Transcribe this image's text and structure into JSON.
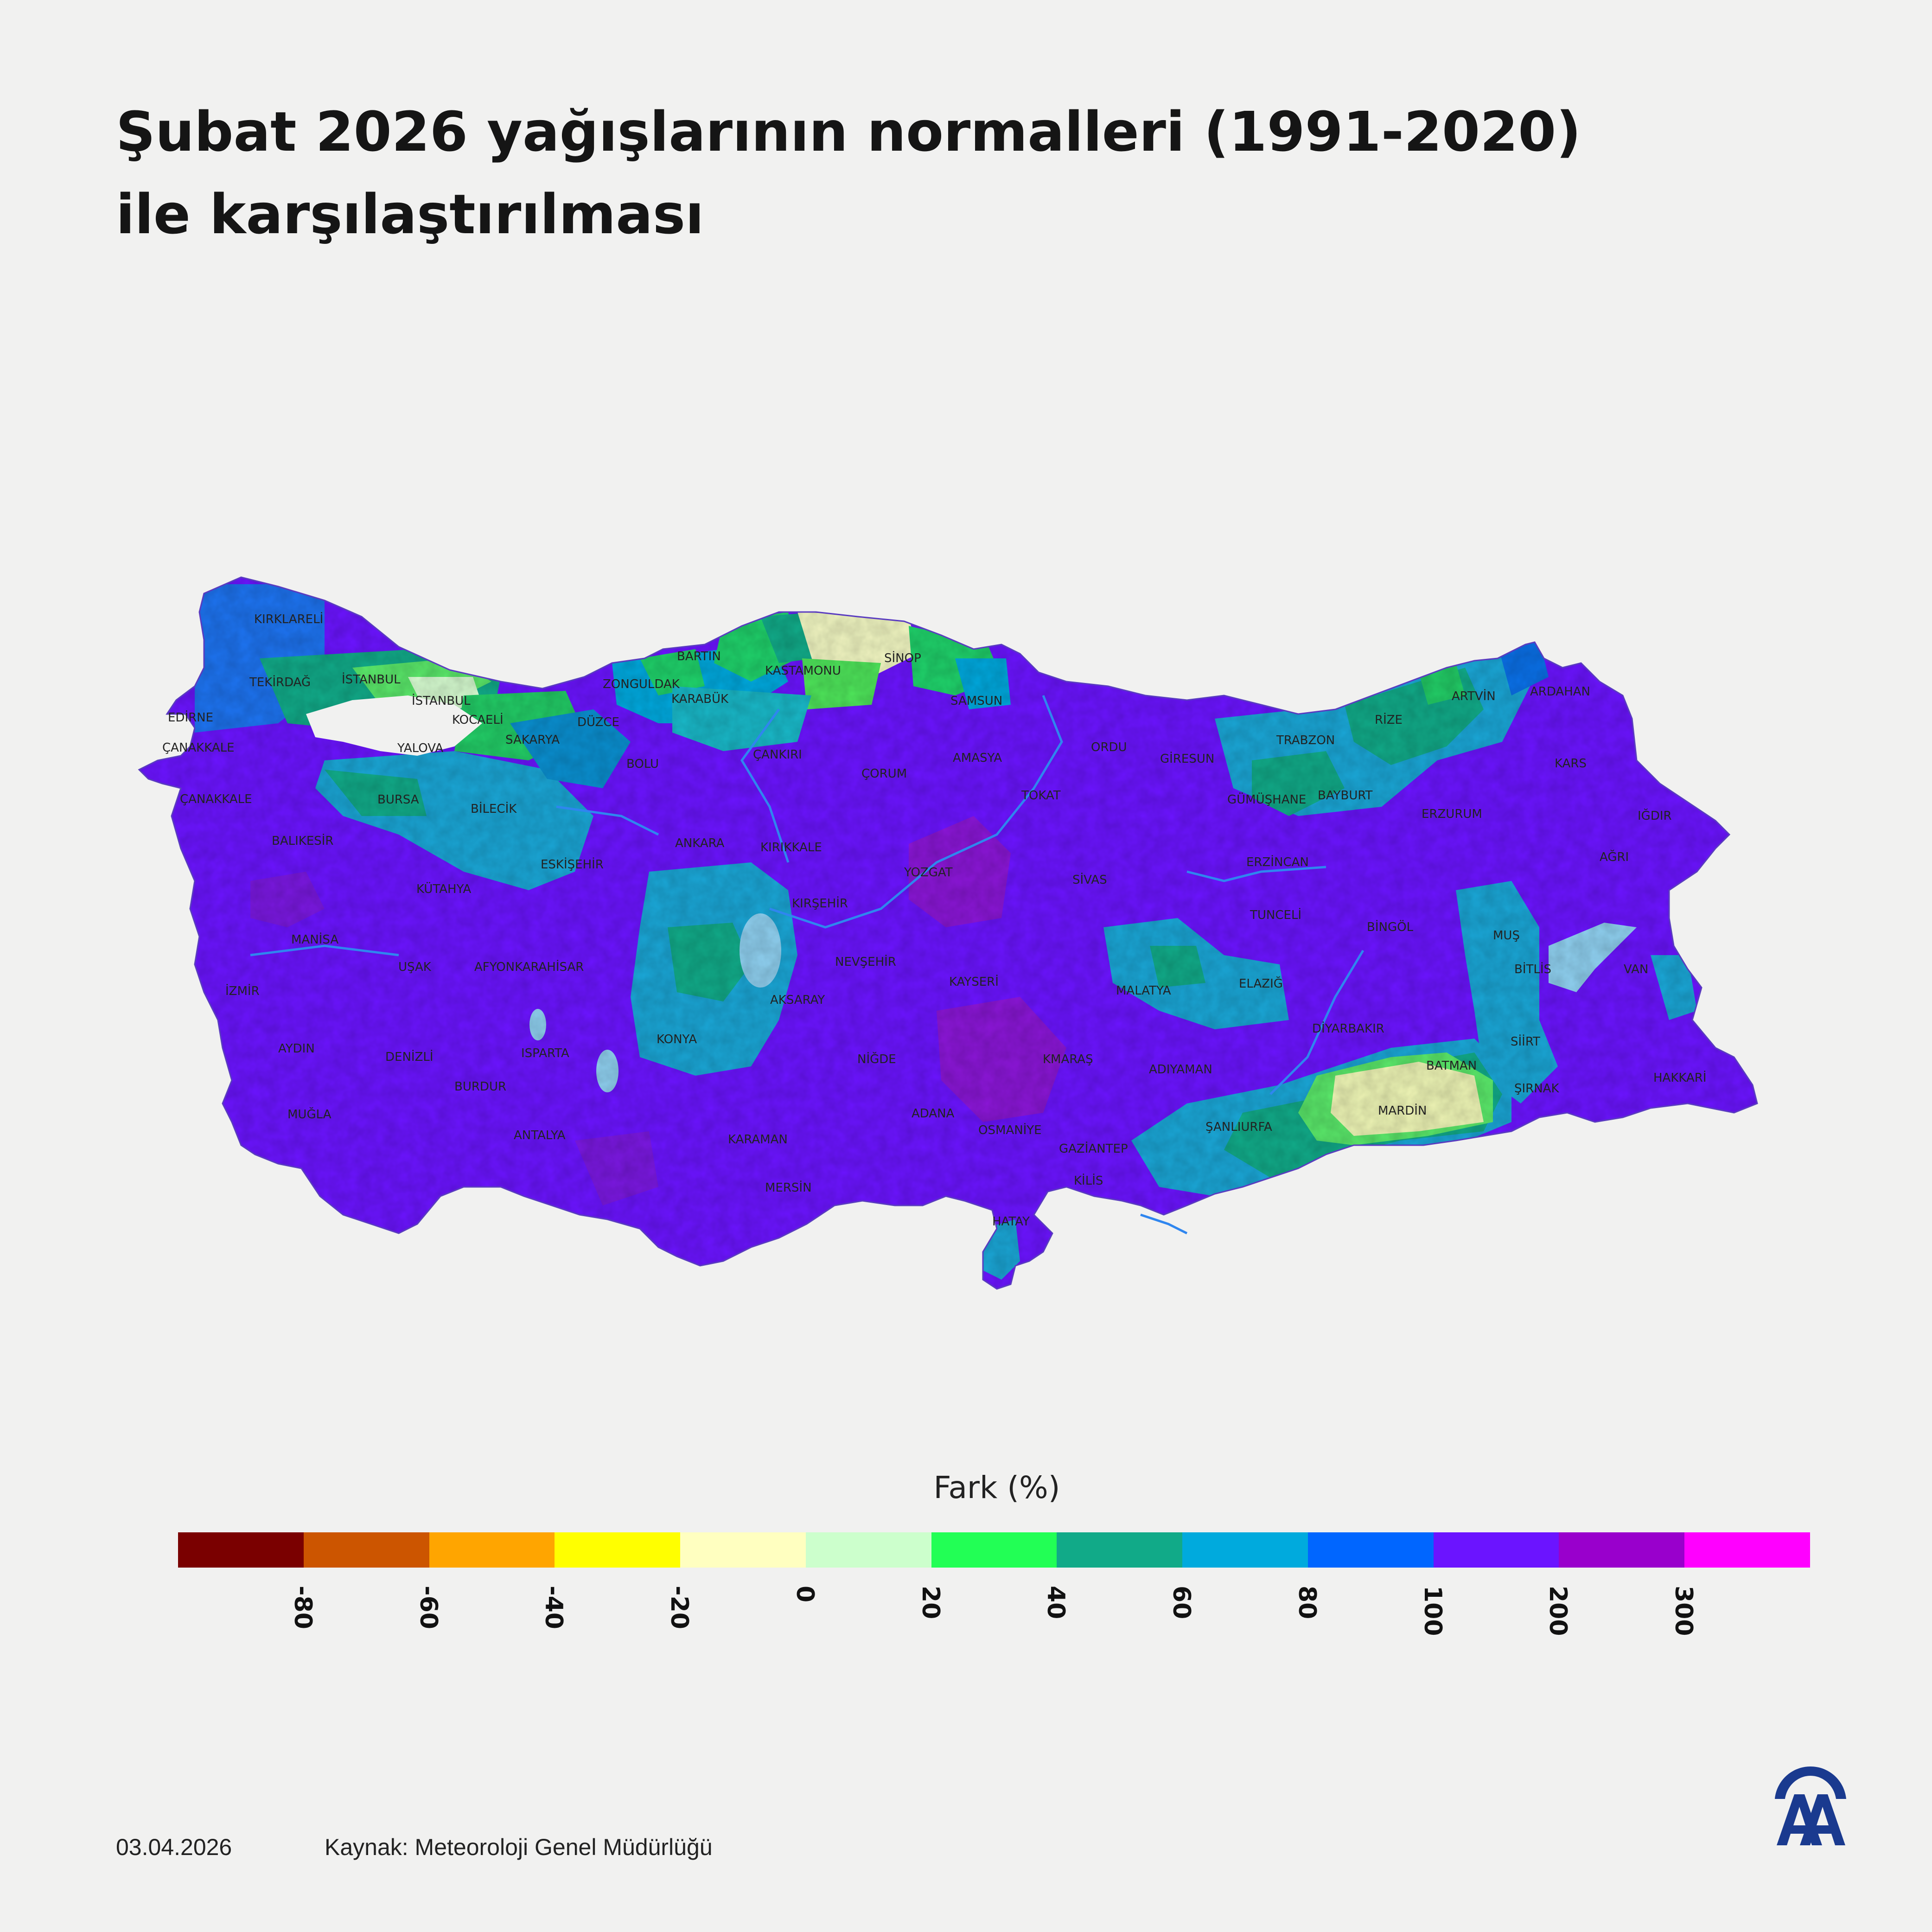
{
  "title": {
    "line1": "Şubat 2026 yağışlarının normalleri (1991-2020)",
    "line2": "ile karşılaştırılması"
  },
  "legend": {
    "title": "Fark (%)",
    "colors": [
      "#7a0000",
      "#cc5500",
      "#ffa500",
      "#ffff00",
      "#ffffc0",
      "#ccffcc",
      "#22ff55",
      "#11aa88",
      "#00aadd",
      "#0066ff",
      "#6b14ff",
      "#9900cc",
      "#ff00ff"
    ],
    "ticks": [
      "-80",
      "-60",
      "-40",
      "-20",
      "0",
      "20",
      "40",
      "60",
      "80",
      "100",
      "200",
      "300"
    ]
  },
  "provinces": [
    "KIRKLARELİ",
    "EDİRNE",
    "TEKİRDAĞ",
    "İSTANBUL",
    "İSTANBUL",
    "ÇANAKKALE",
    "ÇANAKKALE",
    "KOCAELİ",
    "YALOVA",
    "SAKARYA",
    "DÜZCE",
    "ZONGULDAK",
    "BARTIN",
    "KARABÜK",
    "KASTAMONU",
    "SİNOP",
    "SAMSUN",
    "BOLU",
    "ÇANKIRI",
    "ÇORUM",
    "AMASYA",
    "ORDU",
    "GİRESUN",
    "TRABZON",
    "RİZE",
    "ARTVİN",
    "ARDAHAN",
    "KARS",
    "IĞDIR",
    "AĞRI",
    "ERZURUM",
    "BAYBURT",
    "GÜMÜŞHANE",
    "TOKAT",
    "BURSA",
    "BİLECİK",
    "BALIKESİR",
    "ESKİŞEHİR",
    "ANKARA",
    "KIRIKKALE",
    "YOZGAT",
    "SİVAS",
    "ERZİNCAN",
    "TUNCELİ",
    "BİNGÖL",
    "MUŞ",
    "BİTLİS",
    "VAN",
    "KÜTAHYA",
    "MANİSA",
    "İZMİR",
    "UŞAK",
    "AFYONKARAHİSAR",
    "KIRŞEHİR",
    "NEVŞEHİR",
    "AKSARAY",
    "KAYSERİ",
    "MALATYA",
    "ELAZIĞ",
    "DİYARBAKIR",
    "SİİRT",
    "BATMAN",
    "ŞIRNAK",
    "HAKKARİ",
    "AYDIN",
    "DENİZLİ",
    "ISPARTA",
    "KONYA",
    "NİĞDE",
    "KMARAŞ",
    "ADIYAMAN",
    "MARDİN",
    "ŞANLIURFA",
    "MUĞLA",
    "BURDUR",
    "ANTALYA",
    "KARAMAN",
    "ADANA",
    "OSMANİYE",
    "GAZİANTEP",
    "KİLİS",
    "MERSİN",
    "HATAY"
  ],
  "footer": {
    "date": "03.04.2026",
    "source": "Kaynak: Meteoroloji Genel Müdürlüğü"
  },
  "logo_icon": "aa-logo-icon"
}
